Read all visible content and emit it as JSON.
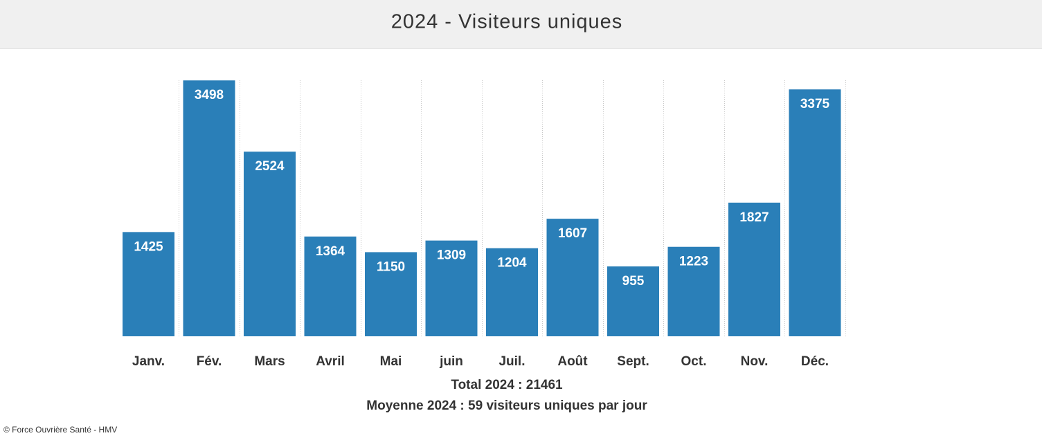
{
  "chart_data": {
    "type": "bar",
    "title": "2024 - Visiteurs uniques",
    "categories": [
      "Janv.",
      "Fév.",
      "Mars",
      "Avril",
      "Mai",
      "juin",
      "Juil.",
      "Août",
      "Sept.",
      "Oct.",
      "Nov.",
      "Déc."
    ],
    "values": [
      1425,
      3498,
      2524,
      1364,
      1150,
      1309,
      1204,
      1607,
      955,
      1223,
      1827,
      3375
    ],
    "color": "#2a7fb8",
    "ylim": [
      0,
      3500
    ],
    "annotations": [
      "Total 2024 : 21461",
      "Moyenne 2024 : 59 visiteurs uniques par jour"
    ],
    "source": "© Force Ouvrière Santé - HMV"
  }
}
